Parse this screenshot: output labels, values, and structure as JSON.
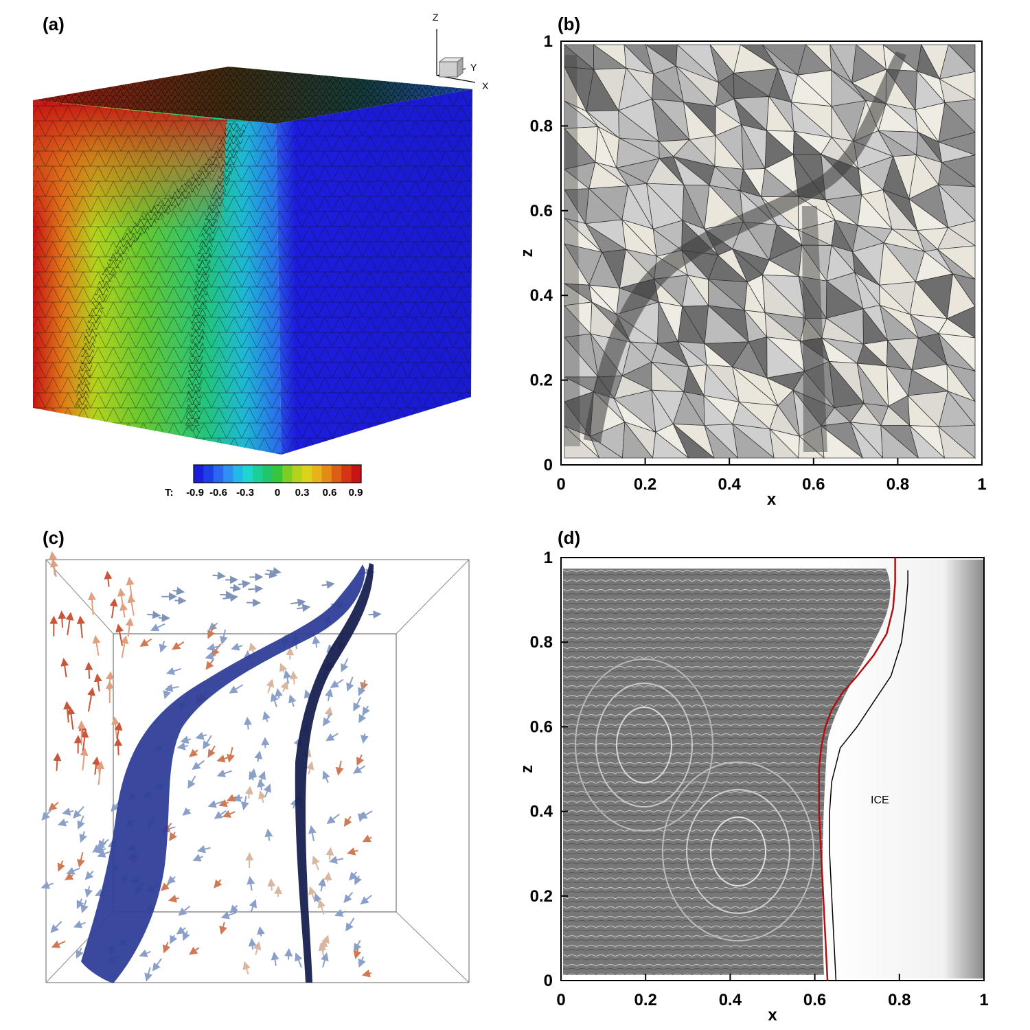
{
  "panels": {
    "a": {
      "label": "(a)",
      "triad": {
        "z": "Z",
        "y": "Y",
        "x": "X"
      },
      "colorbar": {
        "title": "T:",
        "ticks": [
          "-0.9",
          "-0.6",
          "-0.3",
          "0",
          "0.3",
          "0.6",
          "0.9"
        ],
        "colors": [
          "#1c1cdc",
          "#1f3fe6",
          "#2a66ee",
          "#2f8ff2",
          "#22b8e8",
          "#1ed6cf",
          "#1ccf9a",
          "#21c66a",
          "#3ac43a",
          "#7ccd24",
          "#b3d31c",
          "#d9d41a",
          "#e6b419",
          "#e48a17",
          "#df5e16",
          "#d73416",
          "#c81414"
        ]
      },
      "colors": {
        "hot": "#c81414",
        "cold": "#1c1cdc"
      }
    },
    "b": {
      "label": "(b)",
      "chart_data": {
        "type": "mesh",
        "xlabel": "x",
        "ylabel": "z",
        "xlim": [
          0,
          1
        ],
        "ylim": [
          0,
          1
        ],
        "xticks": [
          "0",
          "0.2",
          "0.4",
          "0.6",
          "0.8",
          "1"
        ],
        "yticks": [
          "0",
          "0.2",
          "0.4",
          "0.6",
          "0.8",
          "1"
        ]
      }
    },
    "c": {
      "label": "(c)"
    },
    "d": {
      "label": "(d)",
      "annotation": "ICE",
      "chart_data": {
        "type": "line",
        "xlabel": "x",
        "ylabel": "z",
        "xlim": [
          0,
          1
        ],
        "ylim": [
          0,
          1
        ],
        "xticks": [
          "0",
          "0.2",
          "0.4",
          "0.6",
          "0.8",
          "1"
        ],
        "yticks": [
          "0",
          "0.2",
          "0.4",
          "0.6",
          "0.8",
          "1"
        ],
        "series": [
          {
            "color": "#b01010",
            "x": [
              0.63,
              0.625,
              0.62,
              0.615,
              0.61,
              0.61,
              0.615,
              0.625,
              0.64,
              0.665,
              0.7,
              0.74,
              0.77,
              0.785,
              0.79,
              0.79
            ],
            "y": [
              0.0,
              0.1,
              0.2,
              0.3,
              0.4,
              0.5,
              0.55,
              0.6,
              0.64,
              0.68,
              0.72,
              0.77,
              0.82,
              0.88,
              0.94,
              1.0
            ]
          },
          {
            "color": "#000000",
            "x": [
              0.65,
              0.645,
              0.64,
              0.635,
              0.635,
              0.64,
              0.66,
              0.7,
              0.74,
              0.78,
              0.805,
              0.815,
              0.82,
              0.82
            ],
            "y": [
              0.0,
              0.1,
              0.2,
              0.3,
              0.4,
              0.47,
              0.55,
              0.6,
              0.66,
              0.72,
              0.8,
              0.88,
              0.94,
              0.97
            ]
          }
        ]
      }
    }
  }
}
